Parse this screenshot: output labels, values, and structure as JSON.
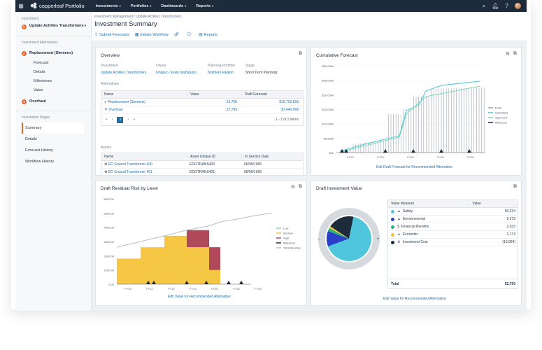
{
  "topbar": {
    "brand": "copperleaf Portfolio",
    "nav": [
      "Investments",
      "Portfolios",
      "Dashboards",
      "Reports"
    ]
  },
  "left": {
    "investment_label": "Investment",
    "investment_name": "Update Achilles Transformers",
    "alternatives_label": "Investment Alternatives",
    "alternatives": [
      {
        "label": "Replacement (Siemens)",
        "sub": [
          "Forecast",
          "Details",
          "Milestones",
          "Value"
        ]
      },
      {
        "label": "Overhaul",
        "sub": []
      }
    ],
    "pages_label": "Investment Pages",
    "pages": [
      "Summary",
      "Details",
      "Forecast History",
      "Workflow History"
    ]
  },
  "header": {
    "breadcrumb": "Investment Management / Update Achilles Transformers",
    "title": "Investment Summary",
    "actions": [
      "Submit Forecasts",
      "Initiate Workflow",
      "Reports"
    ]
  },
  "overview": {
    "title": "Overview",
    "fields": [
      {
        "label": "Investment",
        "value": "Update Achilles Transformers"
      },
      {
        "label": "Owner",
        "value": "Ishiguro, Kevin (kishiguro)"
      },
      {
        "label": "Planning Portfolio",
        "value": "Northern Region"
      },
      {
        "label": "Stage",
        "value": "Short Term Planning"
      }
    ],
    "alternatives_label": "Alternatives",
    "alt_columns": [
      "Name",
      "Value",
      "Draft Forecast"
    ],
    "alt_rows": [
      {
        "name": "Replacement (Siemens)",
        "value": "52,758",
        "forecast": "$19,702,658"
      },
      {
        "name": "Overhaul",
        "value": "37,789",
        "forecast": "$7,440,068"
      }
    ],
    "pager_page": "1",
    "pager_info": "1 - 2 of 2 items",
    "assets_label": "Assets",
    "asset_columns": [
      "Name",
      "Asset Unique ID",
      "In Service Date"
    ],
    "asset_rows": [
      {
        "name": "ED Ground Transformer 400",
        "id": "EDGTRANS400",
        "date": "06/05/1965"
      },
      {
        "name": "ED Ground Transformer 401",
        "id": "EDGTRANS401",
        "date": "06/05/1965"
      }
    ]
  },
  "cumulative": {
    "title": "Cumulative Forecast",
    "caption": "Edit Draft Forecast for Recommended Alternative"
  },
  "residual": {
    "title": "Draft Residual Risk by Level",
    "caption": "Edit Value for Recommended Alternative"
  },
  "value_card": {
    "title": "Draft Investment Value",
    "columns": [
      "Value Measure",
      "Value"
    ],
    "rows": [
      {
        "label": "Safety",
        "value": "56,234",
        "color": "#4fc6dc"
      },
      {
        "label": "Environmental",
        "value": "9,372",
        "color": "#2a3fc7"
      },
      {
        "label": "Financial Benefits",
        "value": "2,033",
        "color": "#26b27a"
      },
      {
        "label": "Economic",
        "value": "1,174",
        "color": "#f2c12e"
      },
      {
        "label": "Investment Cost",
        "value": "(16,054)",
        "color": "#1d2b3b"
      }
    ],
    "total_label": "Total",
    "total_value": "52,759",
    "caption": "Edit Value for Recommended Alternative"
  },
  "chart_data": [
    {
      "type": "area",
      "title": "Cumulative Forecast",
      "x": [
        "FY22",
        "FY23",
        "FY24",
        "FY25",
        "FY26"
      ],
      "ylim": [
        0,
        30000
      ],
      "yticks": [
        "$30,000k",
        "$25,000k",
        "$20,000k",
        "$15,000k",
        "$10,000k",
        "$5,000k",
        "$0k"
      ],
      "series": [
        {
          "name": "Draft",
          "color": "#9aa3ad"
        },
        {
          "name": "Submitted",
          "color": "#4fc6dc"
        },
        {
          "name": "Approved",
          "color": "#7fd9b2"
        },
        {
          "name": "Milestone",
          "color": "#1d2b3b"
        }
      ]
    },
    {
      "type": "area",
      "title": "Draft Residual Risk by Level",
      "x": [
        "FY20",
        "FY21",
        "FY22",
        "FY23",
        "FY24",
        "FY25",
        "FY26"
      ],
      "yticks": [
        "6000.00",
        "5000.00",
        "4000.00",
        "3000.00",
        "2000.00",
        "1000.00",
        "0.00"
      ],
      "series": [
        {
          "name": "Low",
          "color": "#7fd9b2"
        },
        {
          "name": "Medium",
          "color": "#f6c744"
        },
        {
          "name": "High",
          "color": "#b04a5a"
        },
        {
          "name": "Milestone",
          "color": "#1d2b3b"
        },
        {
          "name": "Total Baseline",
          "color": "#b8bec5"
        }
      ]
    },
    {
      "type": "pie",
      "labels": [
        "Safety",
        "Environmental",
        "Financial Benefits",
        "Economic",
        "Investment Cost"
      ],
      "values": [
        56234,
        9372,
        2033,
        1174,
        16054
      ]
    }
  ]
}
